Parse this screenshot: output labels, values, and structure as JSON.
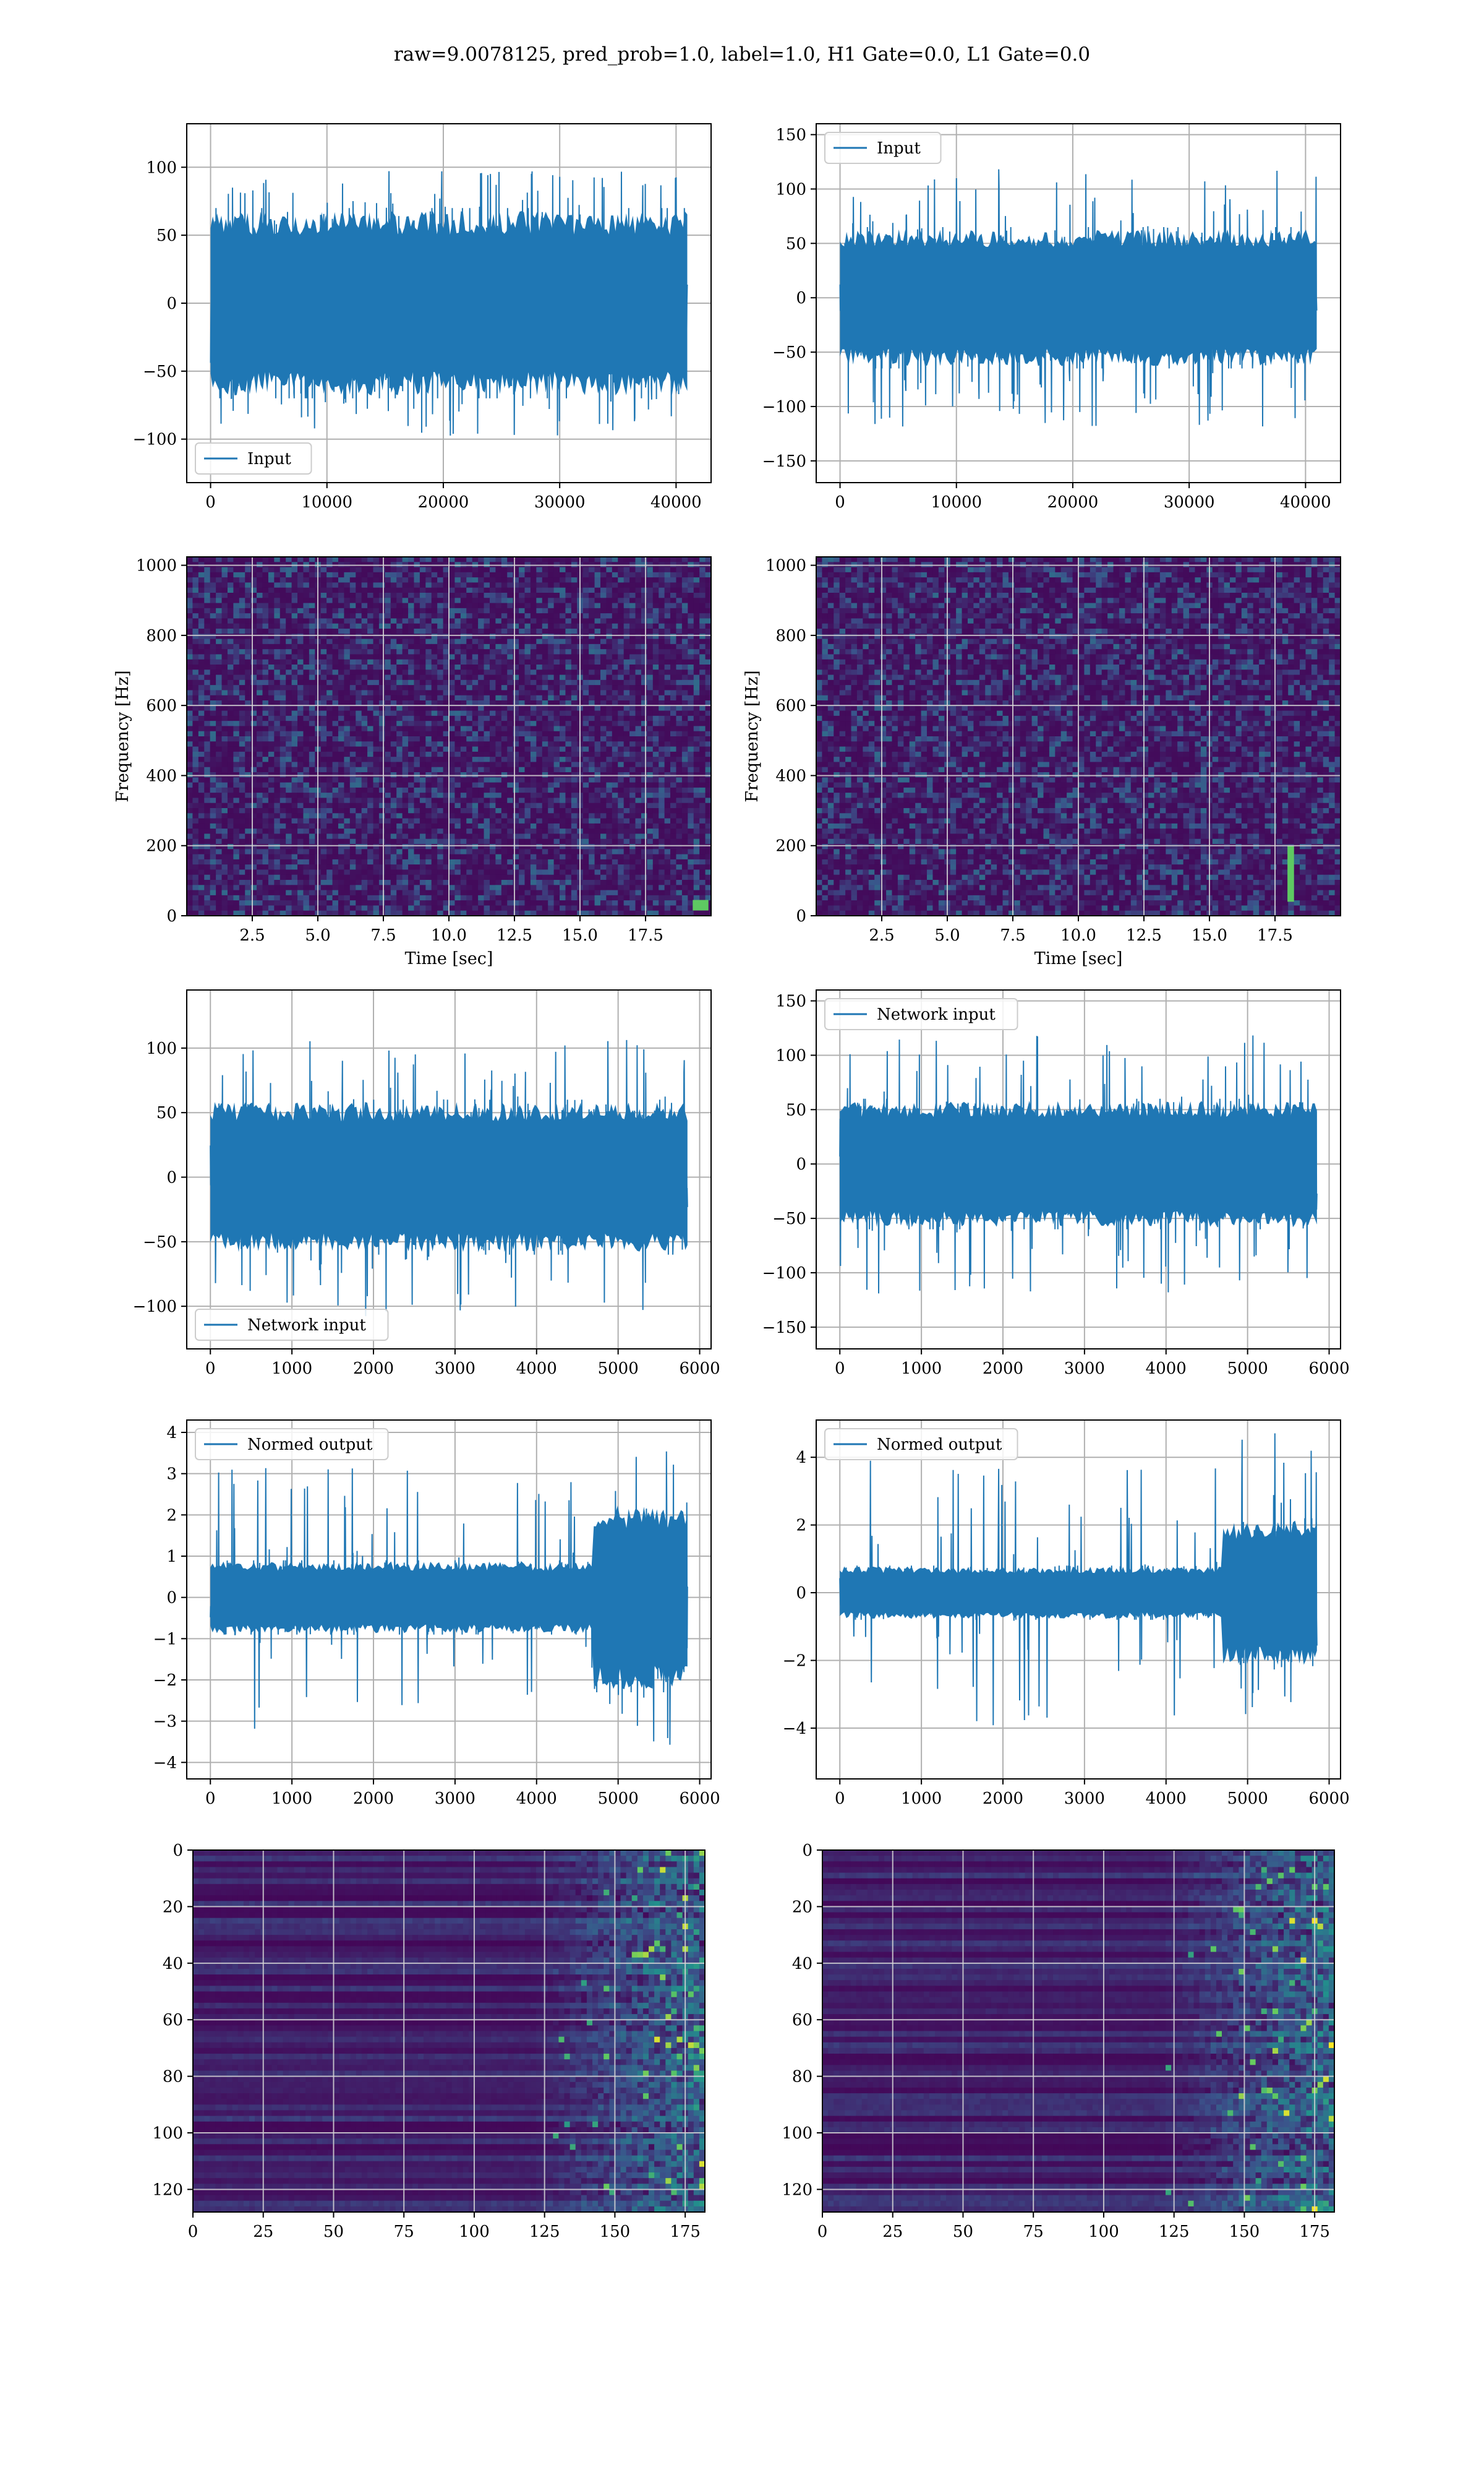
{
  "figure": {
    "title": "raw=9.0078125, pred_prob=1.0, label=1.0, H1 Gate=0.0, L1 Gate=0.0"
  },
  "colors": {
    "line": "#1f77b4",
    "viridis_low": "#440154",
    "viridis_mid": "#21918c",
    "viridis_high": "#fde725"
  },
  "chart_data": [
    {
      "type": "line",
      "panel": "row1-left",
      "series": [
        {
          "name": "Input",
          "values": []
        }
      ],
      "x_range": [
        0,
        40960
      ],
      "envelope": {
        "core": 70,
        "peak": 122,
        "spike_rate": 0.05
      },
      "xlim": [
        -2048,
        43008
      ],
      "ylim": [
        -132,
        132
      ],
      "xticks": [
        0,
        10000,
        20000,
        30000,
        40000
      ],
      "yticks": [
        -100,
        -50,
        0,
        50,
        100
      ],
      "xticklabels": [
        "0",
        "10000",
        "20000",
        "30000",
        "40000"
      ],
      "yticklabels": [
        "−100",
        "−50",
        "0",
        "50",
        "100"
      ],
      "xlabel": "",
      "ylabel": "",
      "legend": "lower-left",
      "grid": true
    },
    {
      "type": "line",
      "panel": "row1-right",
      "series": [
        {
          "name": "Input",
          "values": []
        }
      ],
      "x_range": [
        0,
        40960
      ],
      "envelope": {
        "core": 65,
        "peak": 148,
        "spike_rate": 0.05
      },
      "xlim": [
        -2048,
        43008
      ],
      "ylim": [
        -170,
        160
      ],
      "xticks": [
        0,
        10000,
        20000,
        30000,
        40000
      ],
      "yticks": [
        -150,
        -100,
        -50,
        0,
        50,
        100,
        150
      ],
      "xticklabels": [
        "0",
        "10000",
        "20000",
        "30000",
        "40000"
      ],
      "yticklabels": [
        "−150",
        "−100",
        "−50",
        "0",
        "50",
        "100",
        "150"
      ],
      "xlabel": "",
      "ylabel": "",
      "legend": "upper-left",
      "grid": true
    },
    {
      "type": "heatmap",
      "panel": "row2-left",
      "description_axes": "time-frequency spectrogram",
      "xlim": [
        0,
        20
      ],
      "ylim": [
        0,
        1024
      ],
      "xticks": [
        2.5,
        5.0,
        7.5,
        10.0,
        12.5,
        15.0,
        17.5
      ],
      "yticks": [
        0,
        200,
        400,
        600,
        800,
        1000
      ],
      "xticklabels": [
        "2.5",
        "5.0",
        "7.5",
        "10.0",
        "12.5",
        "15.0",
        "17.5"
      ],
      "yticklabels": [
        "0",
        "200",
        "400",
        "600",
        "800",
        "1000"
      ],
      "xlabel": "Time [sec]",
      "ylabel": "Frequency [Hz]",
      "grid": true,
      "hotspots": [
        {
          "t": 19.6,
          "f": 30,
          "w": 0.6,
          "h": 30
        }
      ]
    },
    {
      "type": "heatmap",
      "panel": "row2-right",
      "xlim": [
        0,
        20
      ],
      "ylim": [
        0,
        1024
      ],
      "xticks": [
        2.5,
        5.0,
        7.5,
        10.0,
        12.5,
        15.0,
        17.5
      ],
      "yticks": [
        0,
        200,
        400,
        600,
        800,
        1000
      ],
      "xticklabels": [
        "2.5",
        "5.0",
        "7.5",
        "10.0",
        "12.5",
        "15.0",
        "17.5"
      ],
      "yticklabels": [
        "0",
        "200",
        "400",
        "600",
        "800",
        "1000"
      ],
      "xlabel": "Time [sec]",
      "ylabel": "Frequency [Hz]",
      "grid": true,
      "hotspots": [
        {
          "t": 18.1,
          "f": 120,
          "w": 0.25,
          "h": 160
        }
      ]
    },
    {
      "type": "line",
      "panel": "row3-left",
      "series": [
        {
          "name": "Network input",
          "values": []
        }
      ],
      "x_range": [
        0,
        5850
      ],
      "envelope": {
        "core": 60,
        "peak": 135,
        "spike_rate": 0.06
      },
      "xlim": [
        -290,
        6140
      ],
      "ylim": [
        -133,
        145
      ],
      "xticks": [
        0,
        1000,
        2000,
        3000,
        4000,
        5000,
        6000
      ],
      "yticks": [
        -100,
        -50,
        0,
        50,
        100
      ],
      "xticklabels": [
        "0",
        "1000",
        "2000",
        "3000",
        "4000",
        "5000",
        "6000"
      ],
      "yticklabels": [
        "−100",
        "−50",
        "0",
        "50",
        "100"
      ],
      "xlabel": "",
      "ylabel": "",
      "legend": "lower-left",
      "grid": true
    },
    {
      "type": "line",
      "panel": "row3-right",
      "series": [
        {
          "name": "Network input",
          "values": []
        }
      ],
      "x_range": [
        0,
        5850
      ],
      "envelope": {
        "core": 60,
        "peak": 150,
        "spike_rate": 0.06
      },
      "xlim": [
        -290,
        6140
      ],
      "ylim": [
        -170,
        160
      ],
      "xticks": [
        0,
        1000,
        2000,
        3000,
        4000,
        5000,
        6000
      ],
      "yticks": [
        -150,
        -100,
        -50,
        0,
        50,
        100,
        150
      ],
      "xticklabels": [
        "0",
        "1000",
        "2000",
        "3000",
        "4000",
        "5000",
        "6000"
      ],
      "yticklabels": [
        "−150",
        "−100",
        "−50",
        "0",
        "50",
        "100",
        "150"
      ],
      "xlabel": "",
      "ylabel": "",
      "legend": "upper-left",
      "grid": true
    },
    {
      "type": "line",
      "panel": "row4-left",
      "series": [
        {
          "name": "Normed output",
          "values": []
        }
      ],
      "x_range": [
        0,
        5850
      ],
      "envelope": {
        "core": 0.9,
        "peak": 4.0,
        "spike_rate": 0.05,
        "burst_start": 4700,
        "burst_core": 2.3
      },
      "xlim": [
        -290,
        6140
      ],
      "ylim": [
        -4.4,
        4.3
      ],
      "xticks": [
        0,
        1000,
        2000,
        3000,
        4000,
        5000,
        6000
      ],
      "yticks": [
        -4,
        -3,
        -2,
        -1,
        0,
        1,
        2,
        3,
        4
      ],
      "xticklabels": [
        "0",
        "1000",
        "2000",
        "3000",
        "4000",
        "5000",
        "6000"
      ],
      "yticklabels": [
        "−4",
        "−3",
        "−2",
        "−1",
        "0",
        "1",
        "2",
        "3",
        "4"
      ],
      "xlabel": "",
      "ylabel": "",
      "legend": "upper-left",
      "grid": true
    },
    {
      "type": "line",
      "panel": "row4-right",
      "series": [
        {
          "name": "Normed output",
          "values": []
        }
      ],
      "x_range": [
        0,
        5850
      ],
      "envelope": {
        "core": 0.8,
        "peak": 4.9,
        "spike_rate": 0.05,
        "burst_start": 4700,
        "burst_core": 2.2
      },
      "xlim": [
        -290,
        6140
      ],
      "ylim": [
        -5.5,
        5.1
      ],
      "xticks": [
        0,
        1000,
        2000,
        3000,
        4000,
        5000,
        6000
      ],
      "yticks": [
        -4,
        -2,
        0,
        2,
        4
      ],
      "xticklabels": [
        "0",
        "1000",
        "2000",
        "3000",
        "4000",
        "5000",
        "6000"
      ],
      "yticklabels": [
        "−4",
        "−2",
        "0",
        "2",
        "4"
      ],
      "xlabel": "",
      "ylabel": "",
      "legend": "upper-left",
      "grid": true
    },
    {
      "type": "heatmap",
      "panel": "row5-left",
      "xlim": [
        0,
        182
      ],
      "ylim": [
        128,
        0
      ],
      "xticks": [
        0,
        25,
        50,
        75,
        100,
        125,
        150,
        175
      ],
      "yticks": [
        0,
        20,
        40,
        60,
        80,
        100,
        120
      ],
      "xticklabels": [
        "0",
        "25",
        "50",
        "75",
        "100",
        "125",
        "150",
        "175"
      ],
      "yticklabels": [
        "0",
        "20",
        "40",
        "60",
        "80",
        "100",
        "120"
      ],
      "xlabel": "",
      "ylabel": "",
      "grid": true,
      "activity_onset": 120
    },
    {
      "type": "heatmap",
      "panel": "row5-right",
      "xlim": [
        0,
        182
      ],
      "ylim": [
        128,
        0
      ],
      "xticks": [
        0,
        25,
        50,
        75,
        100,
        125,
        150,
        175
      ],
      "yticks": [
        0,
        20,
        40,
        60,
        80,
        100,
        120
      ],
      "xticklabels": [
        "0",
        "25",
        "50",
        "75",
        "100",
        "125",
        "150",
        "175"
      ],
      "yticklabels": [
        "0",
        "20",
        "40",
        "60",
        "80",
        "100",
        "120"
      ],
      "xlabel": "",
      "ylabel": "",
      "grid": true,
      "activity_onset": 122
    }
  ]
}
